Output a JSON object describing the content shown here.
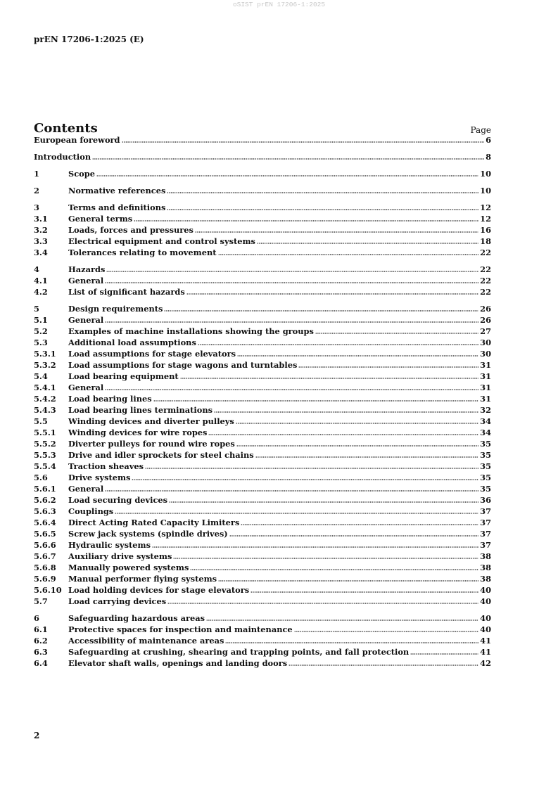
{
  "watermark": "oSIST prEN 17206-1:2025",
  "header": {
    "doc_id": "prEN 17206-1:2025 (E)"
  },
  "contents": {
    "title": "Contents",
    "page_label": "Page",
    "entries": [
      {
        "num": "",
        "label": "European foreword",
        "page": "6"
      },
      {
        "num": "",
        "label": "Introduction",
        "page": "8"
      },
      {
        "num": "1",
        "label": "Scope",
        "page": "10"
      },
      {
        "num": "2",
        "label": "Normative references",
        "page": "10"
      },
      {
        "num": "3",
        "label": "Terms and definitions",
        "page": "12"
      },
      {
        "num": "3.1",
        "label": "General terms",
        "page": "12"
      },
      {
        "num": "3.2",
        "label": "Loads, forces and pressures",
        "page": "16"
      },
      {
        "num": "3.3",
        "label": "Electrical equipment and control systems",
        "page": "18"
      },
      {
        "num": "3.4",
        "label": "Tolerances relating to movement",
        "page": "22"
      },
      {
        "num": "4",
        "label": "Hazards",
        "page": "22"
      },
      {
        "num": "4.1",
        "label": "General",
        "page": "22"
      },
      {
        "num": "4.2",
        "label": "List of significant hazards",
        "page": "22"
      },
      {
        "num": "5",
        "label": "Design requirements",
        "page": "26"
      },
      {
        "num": "5.1",
        "label": "General",
        "page": "26"
      },
      {
        "num": "5.2",
        "label": "Examples of machine installations showing the groups",
        "page": "27"
      },
      {
        "num": "5.3",
        "label": "Additional load assumptions",
        "page": "30"
      },
      {
        "num": "5.3.1",
        "label": "Load assumptions for stage elevators",
        "page": "30"
      },
      {
        "num": "5.3.2",
        "label": "Load assumptions for stage wagons and turntables",
        "page": "31"
      },
      {
        "num": "5.4",
        "label": "Load bearing equipment",
        "page": "31"
      },
      {
        "num": "5.4.1",
        "label": "General",
        "page": "31"
      },
      {
        "num": "5.4.2",
        "label": "Load bearing lines",
        "page": "31"
      },
      {
        "num": "5.4.3",
        "label": "Load bearing lines terminations",
        "page": "32"
      },
      {
        "num": "5.5",
        "label": "Winding devices and diverter pulleys",
        "page": "34"
      },
      {
        "num": "5.5.1",
        "label": "Winding devices for wire ropes",
        "page": "34"
      },
      {
        "num": "5.5.2",
        "label": "Diverter pulleys for round wire ropes",
        "page": "35"
      },
      {
        "num": "5.5.3",
        "label": "Drive and idler sprockets for steel chains",
        "page": "35"
      },
      {
        "num": "5.5.4",
        "label": "Traction sheaves",
        "page": "35"
      },
      {
        "num": "5.6",
        "label": "Drive systems",
        "page": "35"
      },
      {
        "num": "5.6.1",
        "label": "General",
        "page": "35"
      },
      {
        "num": "5.6.2",
        "label": "Load securing devices",
        "page": "36"
      },
      {
        "num": "5.6.3",
        "label": "Couplings",
        "page": "37"
      },
      {
        "num": "5.6.4",
        "label": "Direct Acting Rated Capacity Limiters",
        "page": "37"
      },
      {
        "num": "5.6.5",
        "label": "Screw jack systems (spindle drives)",
        "page": "37"
      },
      {
        "num": "5.6.6",
        "label": "Hydraulic systems",
        "page": "37"
      },
      {
        "num": "5.6.7",
        "label": "Auxiliary drive systems",
        "page": "38"
      },
      {
        "num": "5.6.8",
        "label": "Manually powered systems",
        "page": "38"
      },
      {
        "num": "5.6.9",
        "label": "Manual performer flying systems",
        "page": "38"
      },
      {
        "num": "5.6.10",
        "label": "Load holding devices for stage elevators",
        "page": "40"
      },
      {
        "num": "5.7",
        "label": "Load carrying devices",
        "page": "40"
      },
      {
        "num": "6",
        "label": "Safeguarding hazardous areas",
        "page": "40"
      },
      {
        "num": "6.1",
        "label": "Protective spaces for inspection and maintenance",
        "page": "40"
      },
      {
        "num": "6.2",
        "label": "Accessibility of maintenance areas",
        "page": "41"
      },
      {
        "num": "6.3",
        "label": "Safeguarding at crushing, shearing and trapping points, and fall protection",
        "page": "41"
      },
      {
        "num": "6.4",
        "label": "Elevator shaft walls, openings and landing doors",
        "page": "42"
      }
    ]
  },
  "footer": {
    "page_number": "2"
  }
}
